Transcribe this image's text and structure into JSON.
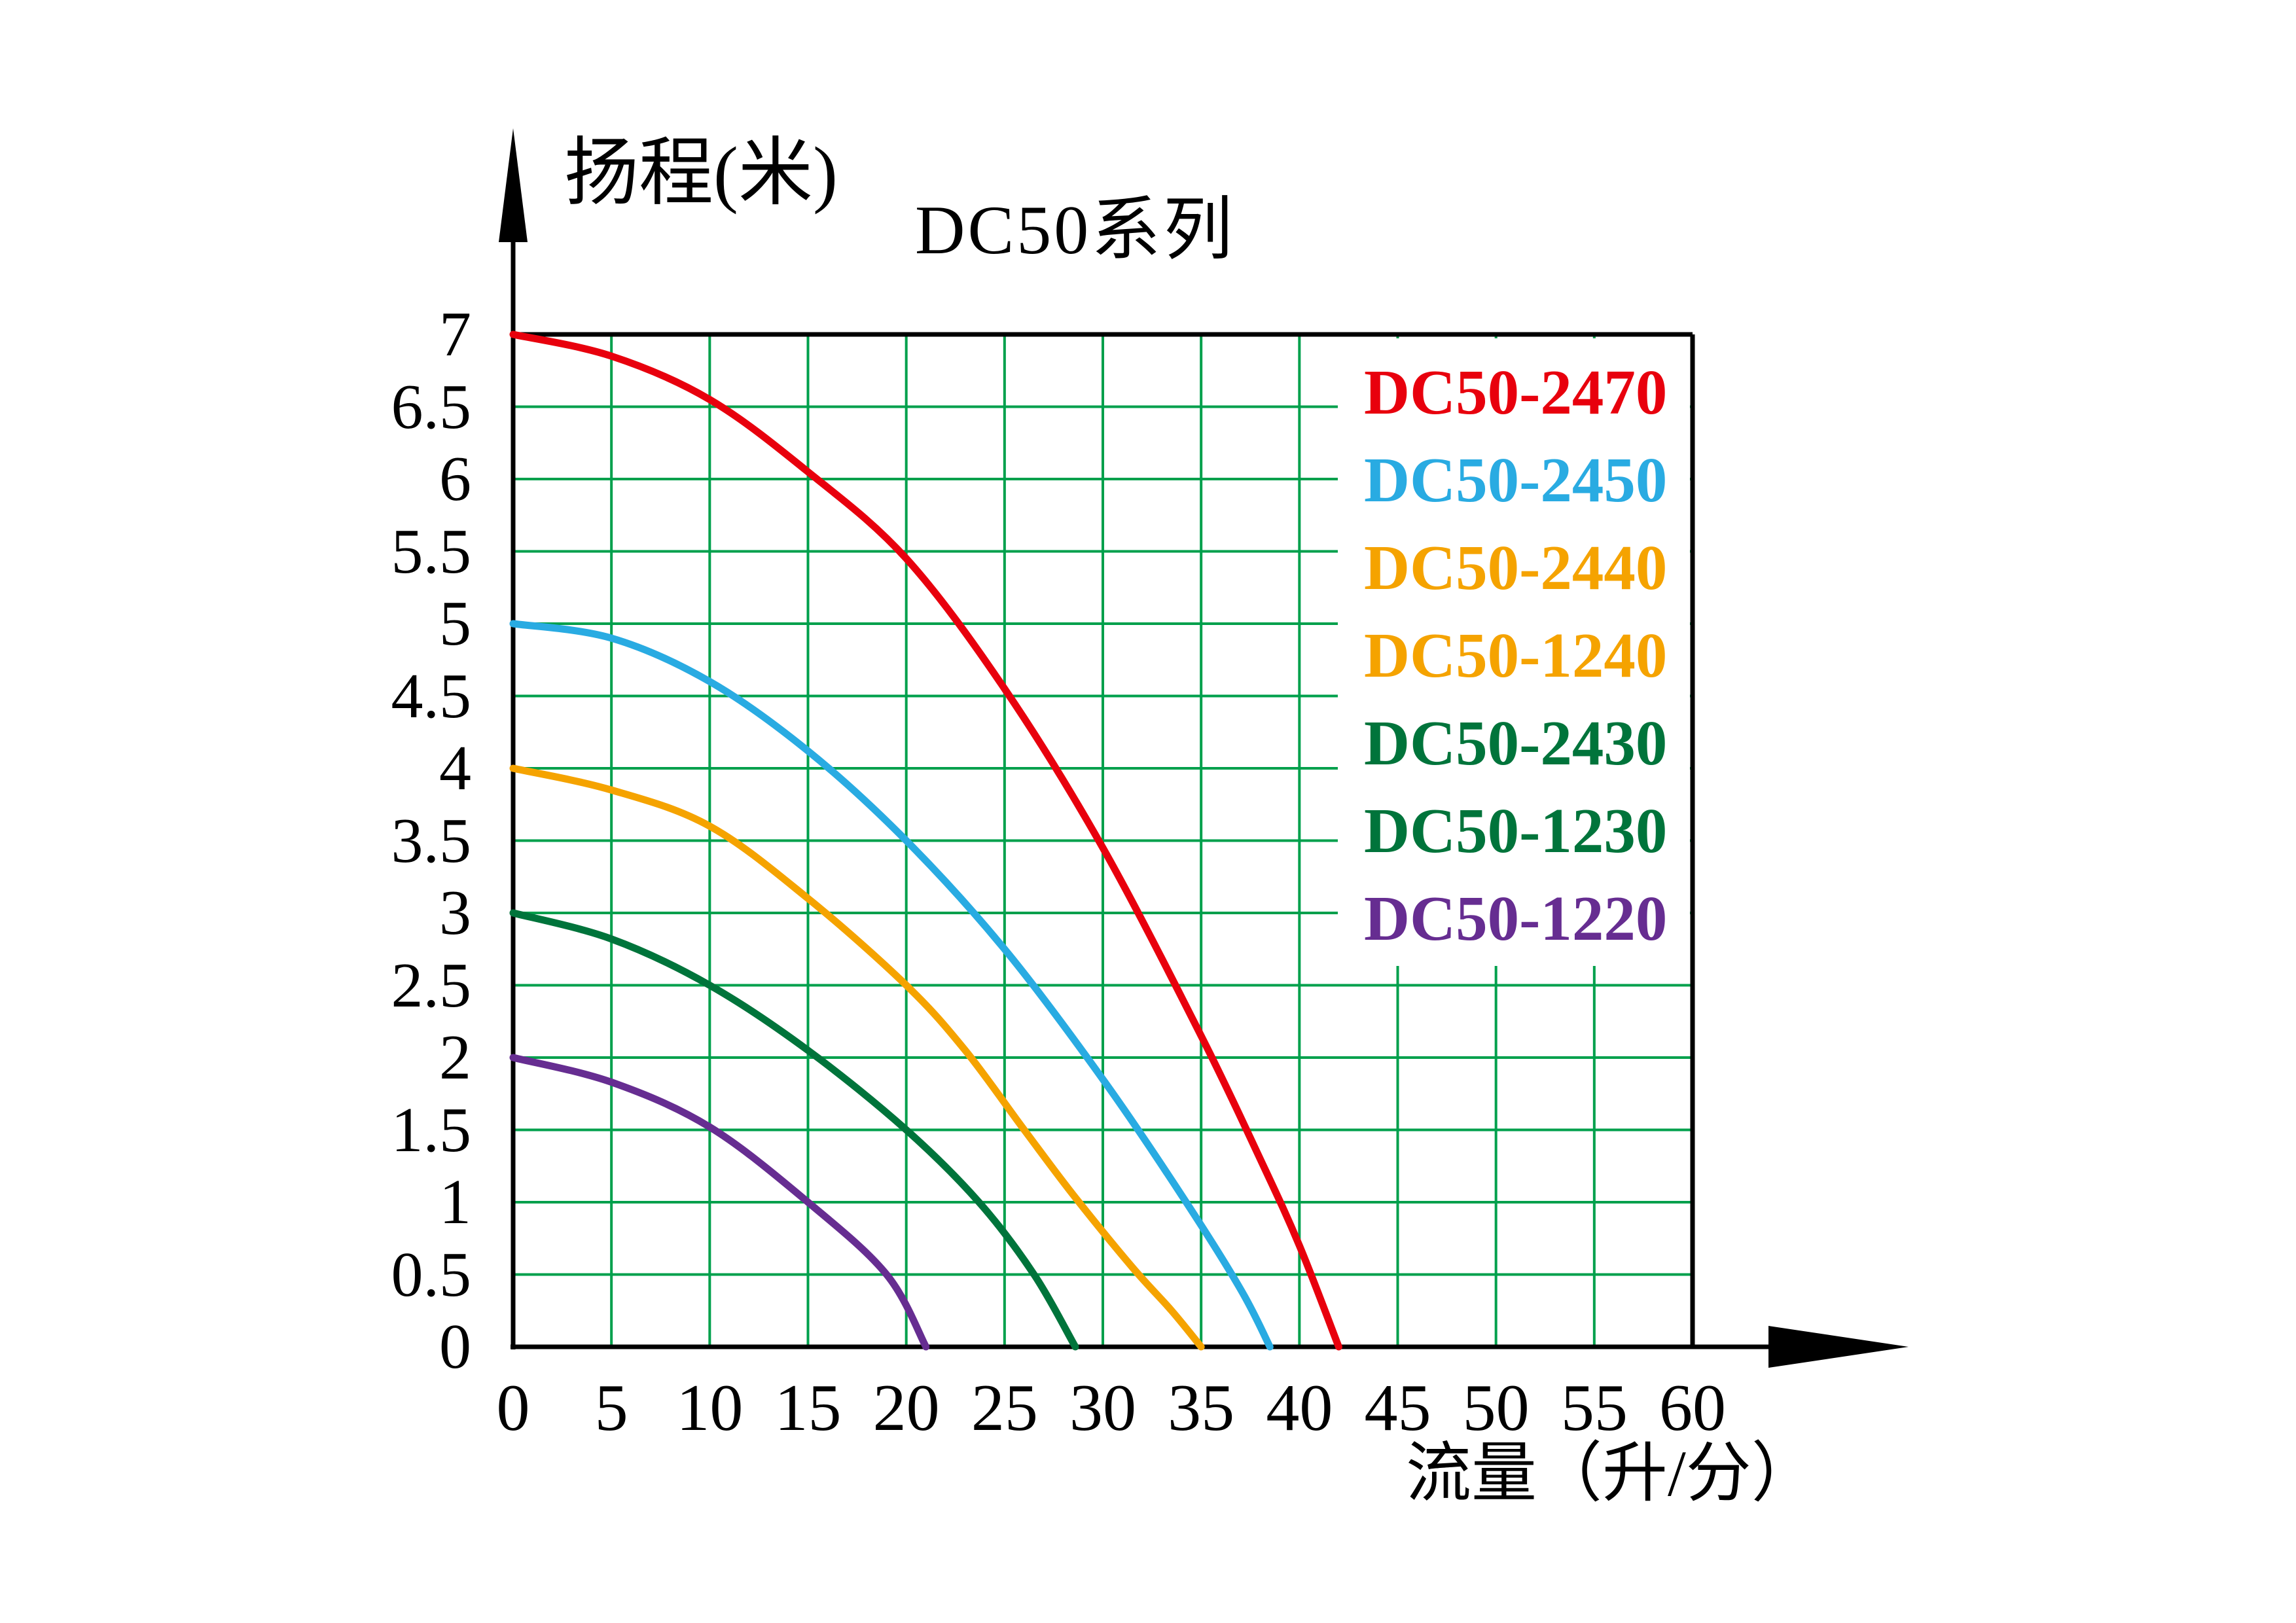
{
  "chart_data": {
    "type": "line",
    "title": "DC50系列",
    "xlabel": "流量（升/分）",
    "ylabel": "扬程(米)",
    "xlim": [
      0,
      60
    ],
    "ylim": [
      0,
      7
    ],
    "x_ticks": [
      "0",
      "5",
      "10",
      "15",
      "20",
      "25",
      "30",
      "35",
      "40",
      "45",
      "50",
      "55",
      "60"
    ],
    "y_ticks": [
      "0",
      "0.5",
      "1",
      "1.5",
      "2",
      "2.5",
      "3",
      "3.5",
      "4",
      "4.5",
      "5",
      "5.5",
      "6",
      "6.5",
      "7"
    ],
    "grid": true,
    "grid_color": "#00A04C",
    "axis_color": "#000000",
    "legend_position": "top-right",
    "legend_background": "#FFFFFF",
    "series": [
      {
        "labels": [
          "DC50-2470"
        ],
        "color": "#E8000D",
        "points": [
          [
            0,
            7
          ],
          [
            5,
            6.85
          ],
          [
            10,
            6.55
          ],
          [
            15,
            6.05
          ],
          [
            20,
            5.45
          ],
          [
            25,
            4.55
          ],
          [
            30,
            3.45
          ],
          [
            35,
            2.15
          ],
          [
            38,
            1.3
          ],
          [
            40,
            0.7
          ],
          [
            42,
            0
          ]
        ]
      },
      {
        "labels": [
          "DC50-2450"
        ],
        "color": "#29ABE2",
        "points": [
          [
            0,
            5
          ],
          [
            5,
            4.9
          ],
          [
            10,
            4.6
          ],
          [
            15,
            4.12
          ],
          [
            20,
            3.5
          ],
          [
            25,
            2.75
          ],
          [
            30,
            1.85
          ],
          [
            34,
            1.05
          ],
          [
            37,
            0.4
          ],
          [
            38.5,
            0
          ]
        ]
      },
      {
        "labels": [
          "DC50-2440",
          "DC50-1240"
        ],
        "color": "#F5A300",
        "points": [
          [
            0,
            4
          ],
          [
            5,
            3.85
          ],
          [
            10,
            3.6
          ],
          [
            15,
            3.1
          ],
          [
            20,
            2.5
          ],
          [
            23,
            2.05
          ],
          [
            26,
            1.5
          ],
          [
            28.5,
            1.05
          ],
          [
            31.5,
            0.55
          ],
          [
            33.5,
            0.25
          ],
          [
            35,
            0
          ]
        ]
      },
      {
        "labels": [
          "DC50-2430",
          "DC50-1230"
        ],
        "color": "#00743B",
        "points": [
          [
            0,
            3
          ],
          [
            5,
            2.82
          ],
          [
            10,
            2.5
          ],
          [
            15,
            2.05
          ],
          [
            20,
            1.5
          ],
          [
            23.7,
            1.0
          ],
          [
            26.5,
            0.5
          ],
          [
            28.6,
            0
          ]
        ]
      },
      {
        "labels": [
          "DC50-1220"
        ],
        "color": "#662D91",
        "points": [
          [
            0,
            2
          ],
          [
            5,
            1.83
          ],
          [
            10,
            1.52
          ],
          [
            15,
            1.0
          ],
          [
            19,
            0.5
          ],
          [
            21,
            0
          ]
        ]
      }
    ]
  }
}
